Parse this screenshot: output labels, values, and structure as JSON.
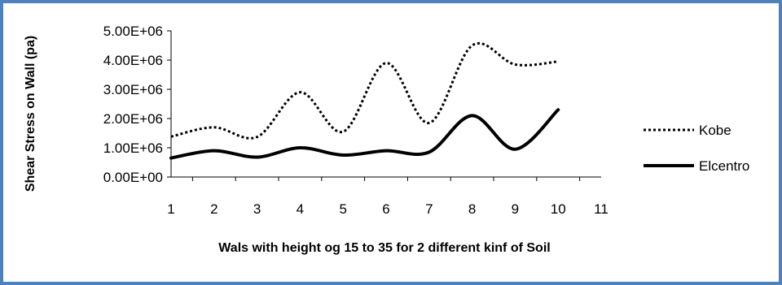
{
  "chart_data": {
    "type": "line",
    "title": "",
    "xlabel": "Wals with height og 15 to 35 for 2 different kinf of Soil",
    "ylabel": "Shear Stress on Wall (pa)",
    "x": [
      1,
      2,
      3,
      4,
      5,
      6,
      7,
      8,
      9,
      10
    ],
    "x_ticks": [
      "1",
      "2",
      "3",
      "4",
      "5",
      "6",
      "7",
      "8",
      "9",
      "10",
      "11"
    ],
    "xlim": [
      1,
      11
    ],
    "y_ticks": [
      "0.00E+00",
      "1.00E+06",
      "2.00E+06",
      "3.00E+06",
      "4.00E+06",
      "5.00E+06"
    ],
    "ylim": [
      0,
      5000000
    ],
    "grid": false,
    "legend_position": "right",
    "series": [
      {
        "name": "Kobe",
        "style": "dotted",
        "color": "#000000",
        "values": [
          1380000,
          1700000,
          1370000,
          2900000,
          1550000,
          3900000,
          1850000,
          4500000,
          3850000,
          3950000
        ]
      },
      {
        "name": "Elcentro",
        "style": "solid",
        "color": "#000000",
        "values": [
          650000,
          900000,
          680000,
          1000000,
          750000,
          900000,
          850000,
          2100000,
          950000,
          2300000
        ]
      }
    ]
  },
  "colors": {
    "border": "#4F81BD",
    "line": "#000000"
  }
}
